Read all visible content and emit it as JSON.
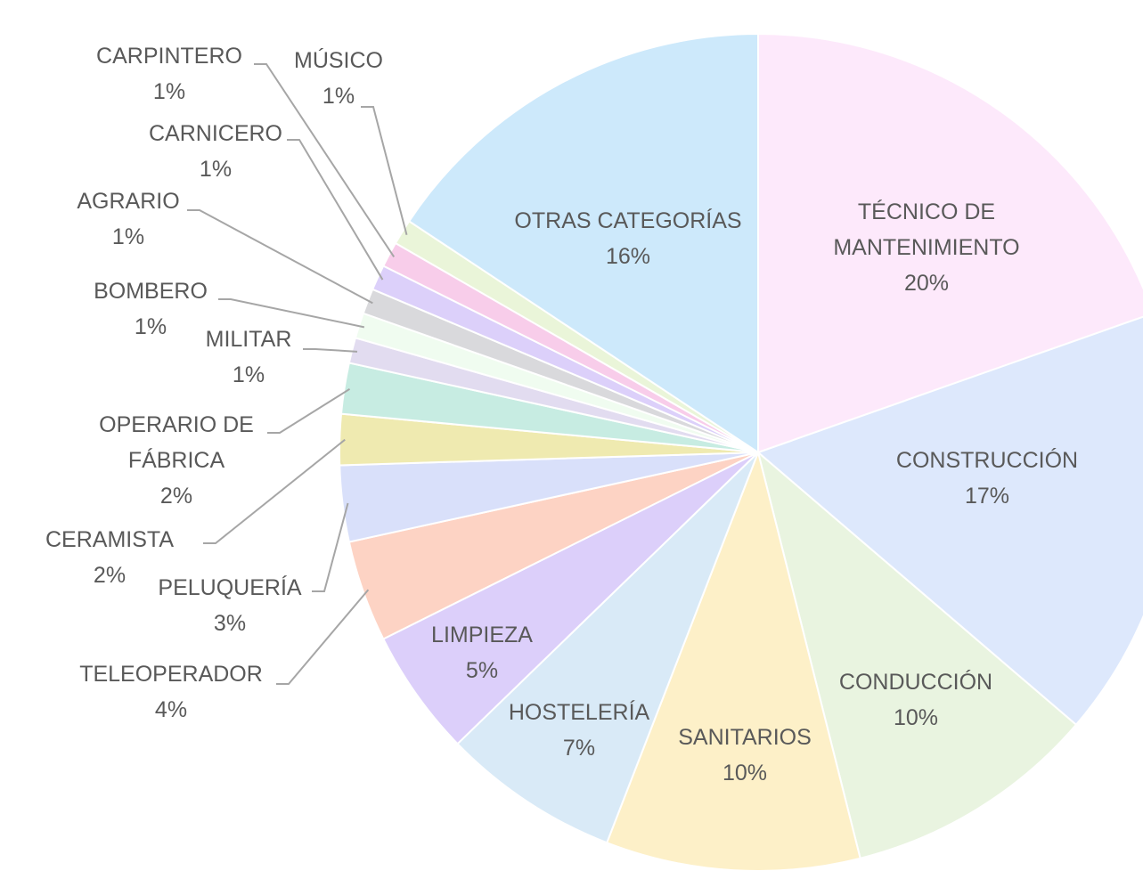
{
  "chart_data": {
    "type": "pie",
    "categories": [
      "TÉCNICO DE MANTENIMIENTO",
      "CONSTRUCCIÓN",
      "CONDUCCIÓN",
      "SANITARIOS",
      "HOSTELERÍA",
      "LIMPIEZA",
      "TELEOPERADOR",
      "PELUQUERÍA",
      "CERAMISTA",
      "OPERARIO DE FÁBRICA",
      "MILITAR",
      "BOMBERO",
      "AGRARIO",
      "CARNICERO",
      "CARPINTERO",
      "MÚSICO",
      "OTRAS CATEGORÍAS"
    ],
    "values": [
      20,
      17,
      10,
      10,
      7,
      5,
      4,
      3,
      2,
      2,
      1,
      1,
      1,
      1,
      1,
      1,
      16
    ],
    "value_labels": [
      "20%",
      "17%",
      "10%",
      "10%",
      "7%",
      "5%",
      "4%",
      "3%",
      "2%",
      "2%",
      "1%",
      "1%",
      "1%",
      "1%",
      "1%",
      "1%",
      "16%"
    ],
    "colors": [
      "#fde9fb",
      "#dde8fc",
      "#e9f4e0",
      "#fdf0c8",
      "#d9eaf7",
      "#dccffa",
      "#fdd3c4",
      "#d9e0fa",
      "#efeab0",
      "#c7ece2",
      "#e2dcf0",
      "#f0fcf0",
      "#d9d9dc",
      "#dcd0fa",
      "#f8cdea",
      "#eaf5d9",
      "#cde9fb"
    ]
  }
}
